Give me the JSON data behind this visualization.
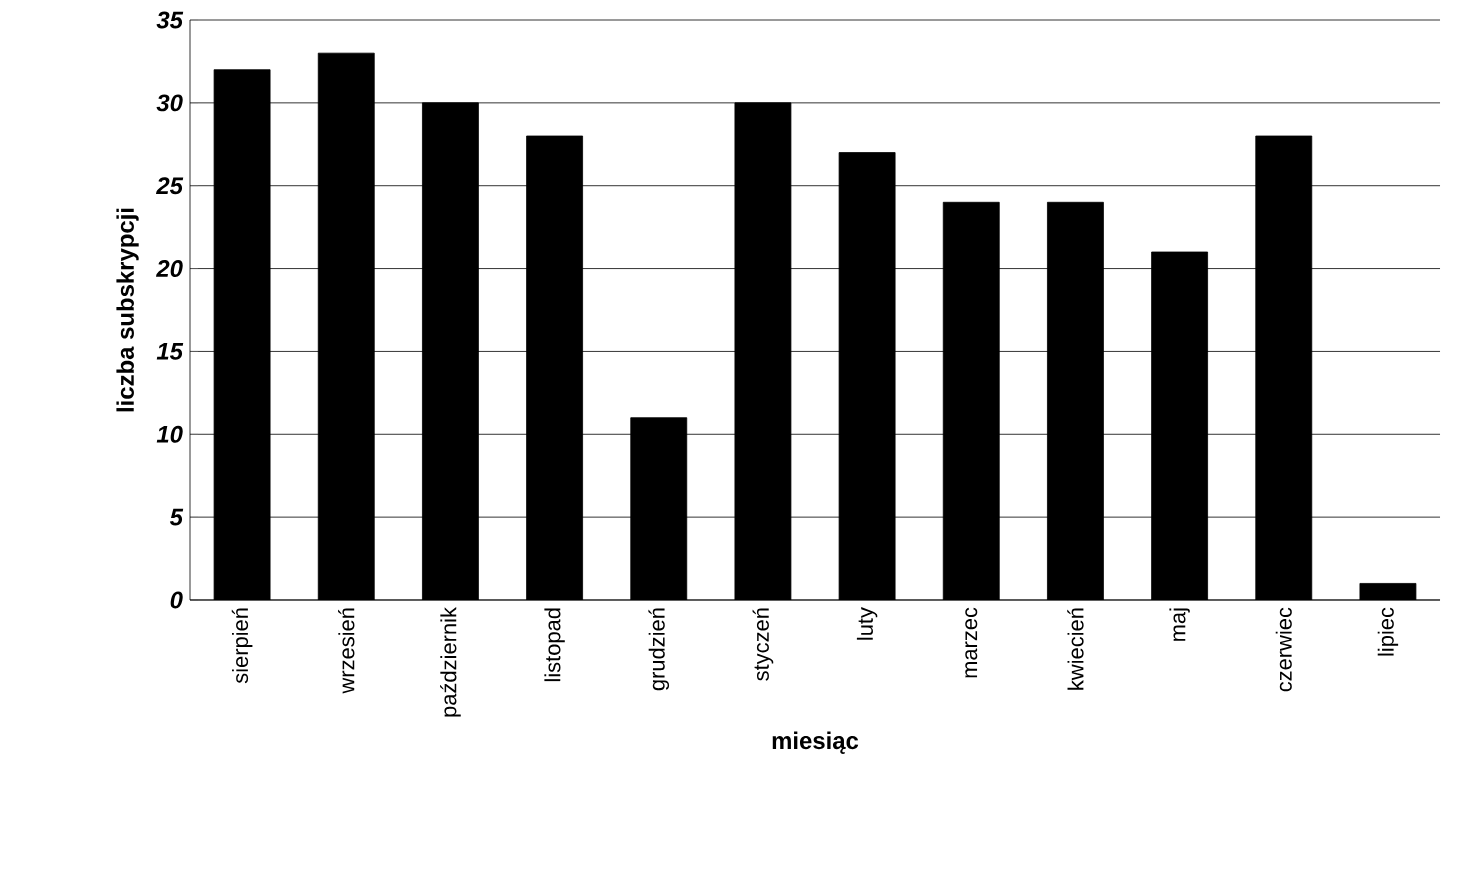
{
  "chart_data": {
    "type": "bar",
    "xlabel": "miesiąc",
    "ylabel": "liczba subskrypcji",
    "categories": [
      "sierpień",
      "wrzesień",
      "październik",
      "listopad",
      "grudzień",
      "styczeń",
      "luty",
      "marzec",
      "kwiecień",
      "maj",
      "czerwiec",
      "lipiec"
    ],
    "values": [
      32,
      33,
      30,
      28,
      11,
      30,
      27,
      24,
      24,
      21,
      28,
      1
    ],
    "color": "#000000",
    "ylim": [
      0,
      35
    ],
    "yticks": [
      0,
      5,
      10,
      15,
      20,
      25,
      30,
      35
    ],
    "grid": "y"
  }
}
